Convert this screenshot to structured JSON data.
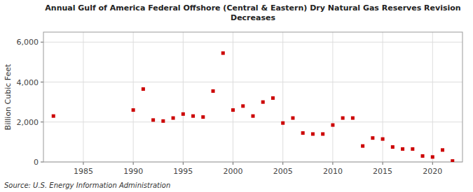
{
  "chart_data": {
    "type": "scatter",
    "title": "Annual Gulf of America Federal Offshore (Central & Eastern) Dry Natural Gas Reserves Revision\nDecreases",
    "ylabel": "Billion Cubic Feet",
    "source": "Source: U.S. Energy Information Administration",
    "x": [
      1982,
      1990,
      1991,
      1992,
      1993,
      1994,
      1995,
      1996,
      1997,
      1998,
      1999,
      2000,
      2001,
      2002,
      2003,
      2004,
      2005,
      2006,
      2007,
      2008,
      2009,
      2010,
      2011,
      2012,
      2013,
      2014,
      2015,
      2016,
      2017,
      2018,
      2019,
      2020,
      2021,
      2022
    ],
    "values": [
      2300,
      2600,
      3650,
      2100,
      2050,
      2200,
      2400,
      2300,
      2250,
      3550,
      5450,
      2600,
      2800,
      2300,
      3000,
      3200,
      1950,
      2200,
      1450,
      1400,
      1400,
      1850,
      2200,
      2200,
      800,
      1200,
      1150,
      750,
      650,
      650,
      300,
      250,
      600,
      50
    ],
    "color": "#cc0000",
    "marker": "square",
    "xlim": [
      1981,
      2023
    ],
    "ylim": [
      0,
      6500
    ],
    "xticks": [
      1985,
      1990,
      1995,
      2000,
      2005,
      2010,
      2015,
      2020
    ],
    "yticks": [
      0,
      {
        "value": 2000,
        "label": "2,000"
      },
      {
        "value": 4000,
        "label": "4,000"
      },
      {
        "value": 6000,
        "label": "6,000"
      }
    ],
    "grid": true
  }
}
